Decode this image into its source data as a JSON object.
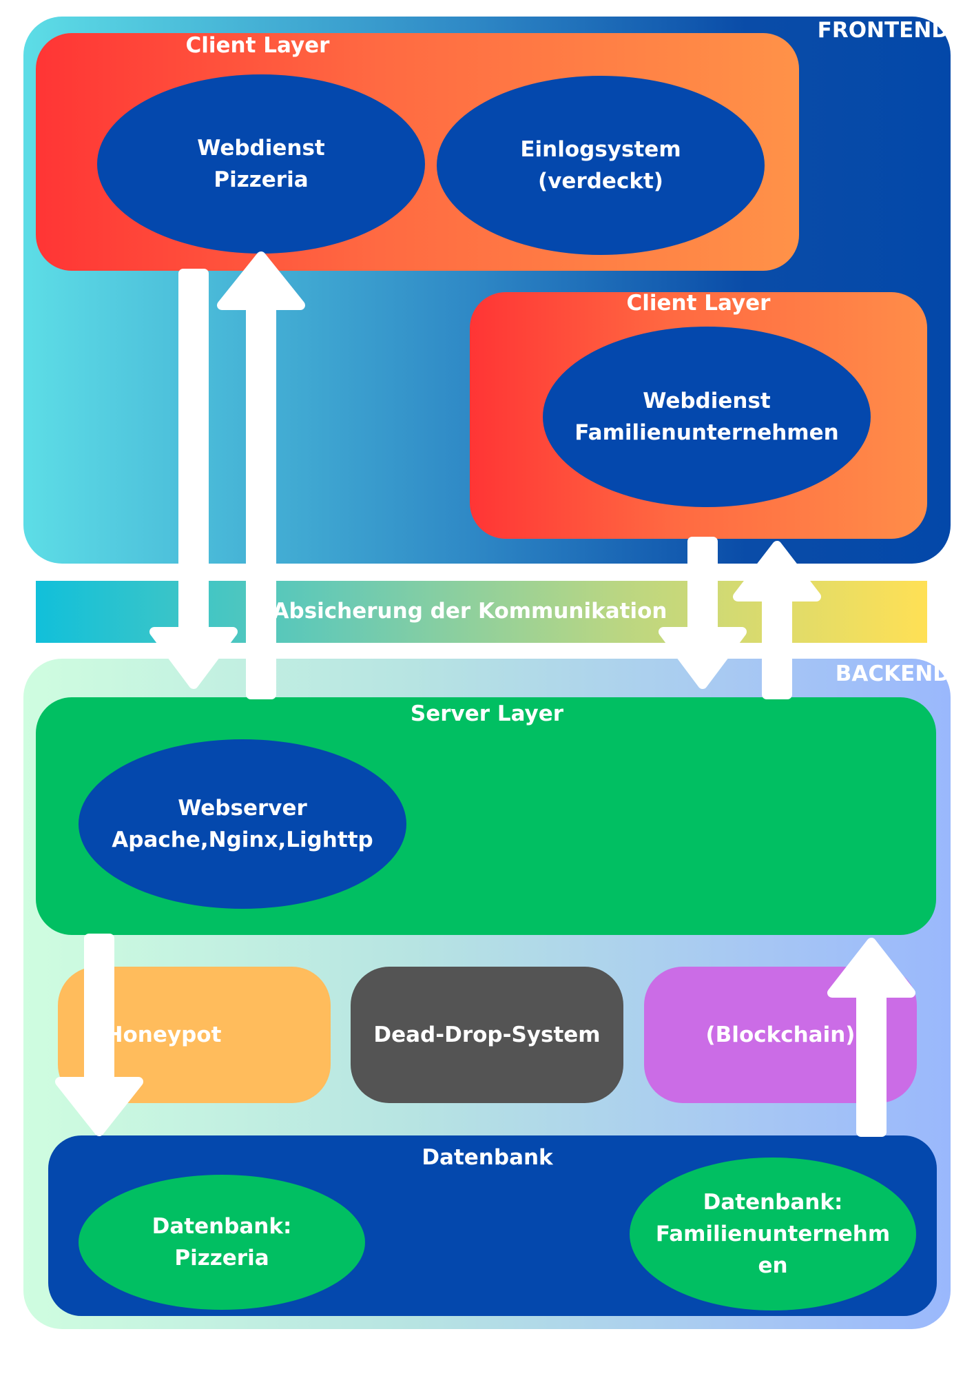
{
  "frontend": {
    "title": "FRONTEND"
  },
  "client_layer_1": {
    "title": "Client Layer",
    "webdienst_pizzeria": [
      "Webdienst",
      "Pizzeria"
    ],
    "einlogsystem": [
      "Einlogsystem",
      "(verdeckt)"
    ]
  },
  "client_layer_2": {
    "title": "Client Layer",
    "webdienst_familie": [
      "Webdienst",
      "Familienunternehmen"
    ]
  },
  "security": {
    "label": "Absicherung der Kommunikation"
  },
  "backend": {
    "title": "BACKEND"
  },
  "server_layer": {
    "title": "Server Layer",
    "webserver": [
      "Webserver",
      "Apache,Nginx,Lighttp"
    ]
  },
  "services": {
    "honeypot": "Honeypot",
    "dead_drop": "Dead-Drop-System",
    "blockchain": "(Blockchain)"
  },
  "datenbank": {
    "title": "Datenbank",
    "pizzeria": [
      "Datenbank:",
      "Pizzeria"
    ],
    "familie": [
      "Datenbank:",
      "Familienunternehm",
      "en"
    ]
  },
  "colors": {
    "ellipse_blue": "#0448ad",
    "server_green": "#01bf62",
    "honeypot_orange": "#ffbc5c",
    "dead_drop_gray": "#545454",
    "blockchain_purple": "#cb6ce6",
    "arrow_white": "#ffffff"
  }
}
